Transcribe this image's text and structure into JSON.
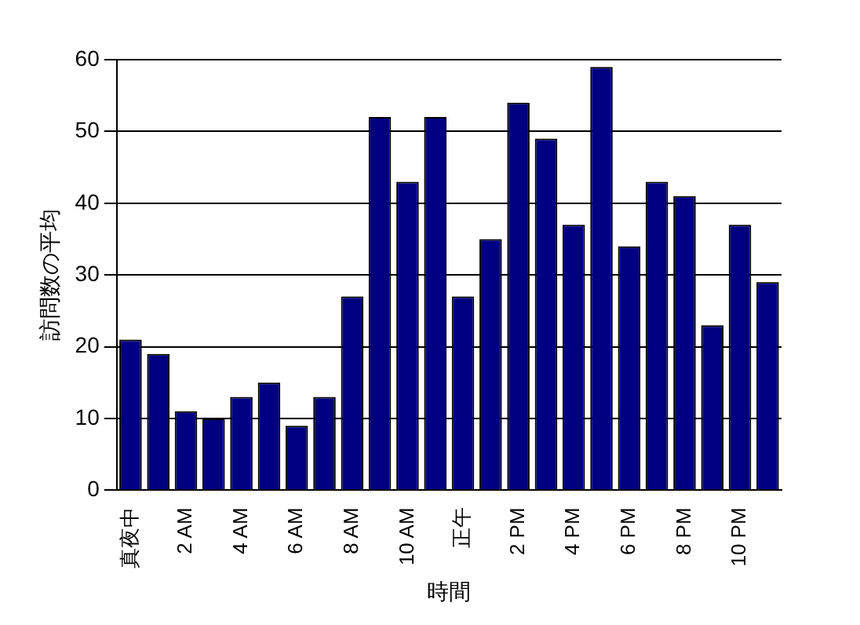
{
  "chart_data": {
    "type": "bar",
    "xlabel": "時間",
    "ylabel": "訪問数の平均",
    "categories": [
      "真夜中",
      null,
      "2 AM",
      null,
      "4 AM",
      null,
      "6 AM",
      null,
      "8 AM",
      null,
      "10 AM",
      null,
      "正午",
      null,
      "2 PM",
      null,
      "4 PM",
      null,
      "6 PM",
      null,
      "8 PM",
      null,
      "10 PM",
      null
    ],
    "values": [
      21,
      19,
      11,
      10,
      13,
      15,
      9,
      13,
      27,
      52,
      43,
      52,
      27,
      35,
      54,
      49,
      37,
      59,
      34,
      43,
      41,
      23,
      37,
      29
    ],
    "color": "#000080",
    "ylim": [
      0,
      60
    ],
    "yticks": [
      0,
      10,
      20,
      30,
      40,
      50,
      60
    ],
    "grid": "y",
    "legend": false
  }
}
